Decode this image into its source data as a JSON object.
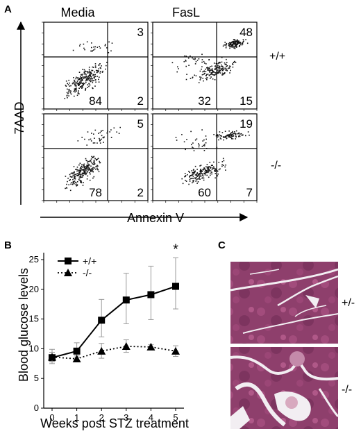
{
  "figure": {
    "panel_a": {
      "letter": "A",
      "column_titles": [
        "Media",
        "FasL"
      ],
      "row_labels": [
        "+/+",
        "-/-"
      ],
      "x_axis_label": "Annexin V",
      "y_axis_label": "7AAD",
      "quadrant_values": [
        {
          "row": "+/+",
          "column": "Media",
          "upper_right": "3",
          "lower_left": "84",
          "lower_right": "2"
        },
        {
          "row": "+/+",
          "column": "FasL",
          "upper_right": "48",
          "lower_left": "32",
          "lower_right": "15"
        },
        {
          "row": "-/-",
          "column": "Media",
          "upper_right": "5",
          "lower_left": "78",
          "lower_right": "2"
        },
        {
          "row": "-/-",
          "column": "FasL",
          "upper_right": "19",
          "lower_left": "60",
          "lower_right": "7"
        }
      ]
    },
    "panel_b": {
      "letter": "B"
    },
    "panel_c": {
      "letter": "C",
      "image_labels": [
        "+/-",
        "-/-"
      ],
      "stain_colors": [
        "#8a3a66",
        "#b36290",
        "#f2eef2"
      ]
    }
  },
  "chart_data": {
    "type": "line",
    "xlabel": "Weeks post STZ treatment",
    "ylabel": "Blood glucose levels",
    "x_ticks": [
      "0",
      "1",
      "2",
      "3",
      "4",
      "5"
    ],
    "y_ticks": [
      "0",
      "5",
      "10",
      "15",
      "20",
      "25"
    ],
    "xlim": [
      0,
      5
    ],
    "ylim": [
      0,
      25
    ],
    "legend_position": "top-left",
    "significance_marker": {
      "x": 5,
      "text": "*"
    },
    "series": [
      {
        "name": "+/+",
        "marker": "square",
        "line_style": "solid",
        "x": [
          0,
          1,
          2,
          3,
          4,
          5
        ],
        "y": [
          8.5,
          9.6,
          14.8,
          18.2,
          19.1,
          20.5
        ],
        "err_upper": [
          1.4,
          1.4,
          3.5,
          4.5,
          4.8,
          4.8
        ],
        "err_lower": [
          1.0,
          1.0,
          2.8,
          4.0,
          4.2,
          3.8
        ]
      },
      {
        "name": "-/-",
        "marker": "triangle",
        "line_style": "dotted",
        "x": [
          0,
          1,
          2,
          3,
          4,
          5
        ],
        "y": [
          8.6,
          8.3,
          9.6,
          10.4,
          10.3,
          9.6
        ],
        "err_upper": [
          0.8,
          0.5,
          1.3,
          1.1,
          0.4,
          0.9
        ],
        "err_lower": [
          0.8,
          0.5,
          1.2,
          1.0,
          0.4,
          0.9
        ]
      }
    ]
  }
}
